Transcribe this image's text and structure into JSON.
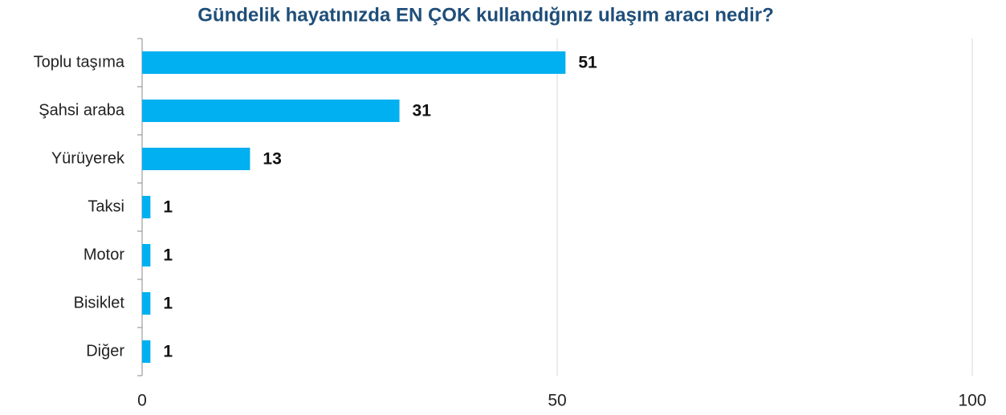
{
  "chart_data": {
    "type": "barh",
    "title": "Gündelik hayatınızda EN ÇOK kullandığınız ulaşım aracı nedir?",
    "categories": [
      "Toplu taşıma",
      "Şahsi araba",
      "Yürüyerek",
      "Taksi",
      "Motor",
      "Bisiklet",
      "Diğer"
    ],
    "values": [
      51,
      31,
      13,
      1,
      1,
      1,
      1
    ],
    "color": "#00b0f0",
    "xlim": [
      0,
      100
    ],
    "xticks": [
      0,
      50,
      100
    ],
    "grid": true
  }
}
